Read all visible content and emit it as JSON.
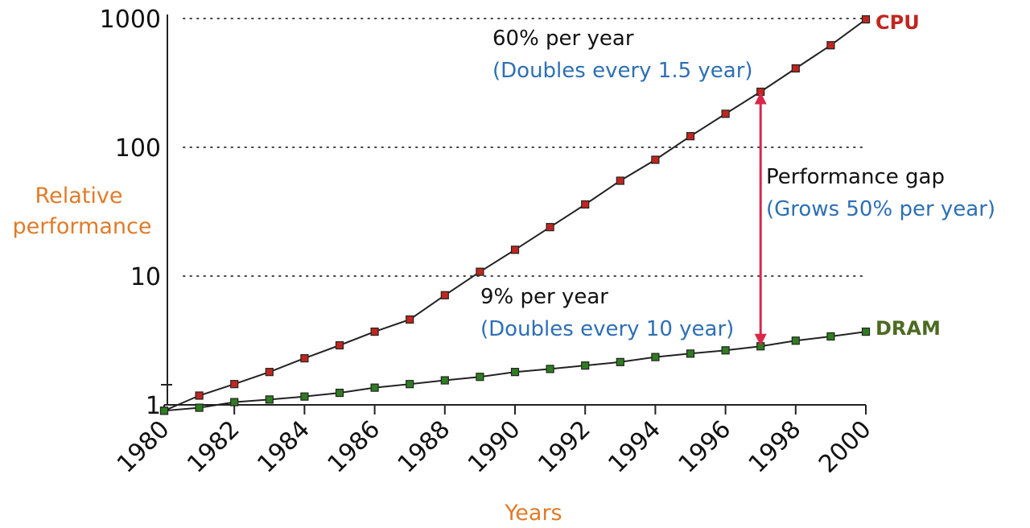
{
  "chart_data": {
    "type": "line",
    "title": "",
    "xlabel": "Years",
    "ylabel_lines": [
      "Relative",
      "performance"
    ],
    "yscale": "log",
    "xlim": [
      1980,
      2000
    ],
    "ylim": [
      1,
      1000
    ],
    "grid": "horizontal dotted",
    "x_ticks": [
      1980,
      1982,
      1984,
      1986,
      1988,
      1990,
      1992,
      1994,
      1996,
      1998,
      2000
    ],
    "y_ticks": [
      1,
      10,
      100,
      1000
    ],
    "x": [
      1980,
      1981,
      1982,
      1983,
      1984,
      1985,
      1986,
      1987,
      1988,
      1989,
      1990,
      1991,
      1992,
      1993,
      1994,
      1995,
      1996,
      1997,
      1998,
      1999,
      2000
    ],
    "series": [
      {
        "name": "CPU",
        "color": "#c0261f",
        "values": [
          0.9,
          1.18,
          1.45,
          1.8,
          2.3,
          2.9,
          3.7,
          4.6,
          7.1,
          10.8,
          16,
          24,
          36,
          55,
          80,
          122,
          182,
          270,
          410,
          620,
          985
        ]
      },
      {
        "name": "DRAM",
        "color": "#2e7d20",
        "values": [
          0.9,
          0.95,
          1.05,
          1.1,
          1.16,
          1.24,
          1.36,
          1.45,
          1.55,
          1.65,
          1.8,
          1.9,
          2.02,
          2.15,
          2.35,
          2.5,
          2.65,
          2.85,
          3.15,
          3.4,
          3.7
        ]
      }
    ],
    "annotations": {
      "cpu_rate": "60% per year",
      "cpu_doubling": "(Doubles every 1.5 year)",
      "dram_rate": "9% per year",
      "dram_doubling": "(Doubles every 10 year)",
      "gap_title": "Performance gap",
      "gap_rate": "(Grows 50% per year)",
      "gap_year": 1997
    },
    "colors": {
      "axis_title": "#e07b2a",
      "annotation_blue": "#2e6fb4",
      "gap_arrow": "#d8284a",
      "line": "#222222",
      "grid": "#444444"
    }
  }
}
